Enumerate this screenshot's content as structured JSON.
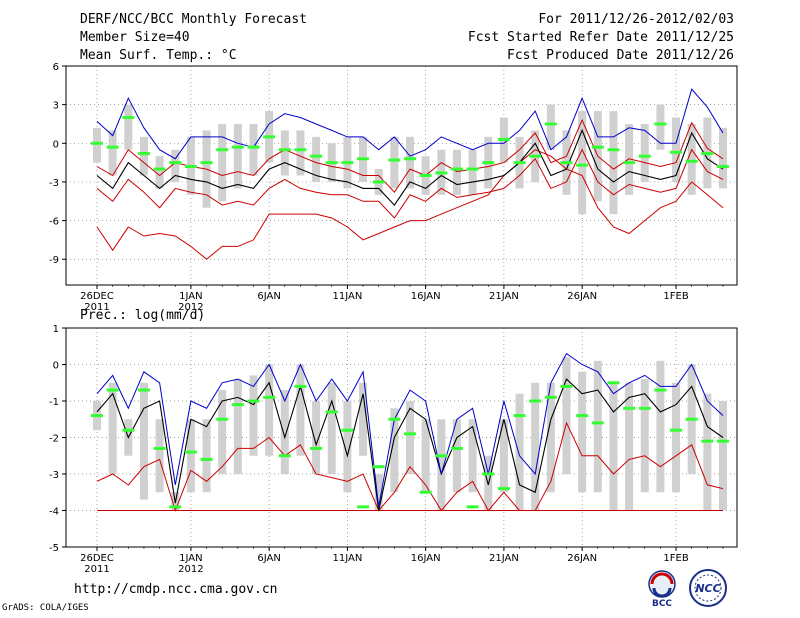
{
  "header": {
    "title": "DERF/NCC/BCC Monthly Forecast",
    "member": "Member Size=40",
    "variable": "Mean Surf. Temp.: °C",
    "period": "For 2011/12/26-2012/02/03",
    "start": "Fcst Started Refer Date 2011/12/25",
    "produced": "Fcst Produced Date 2011/12/26"
  },
  "footer": {
    "url": "http://cmdp.ncc.cma.gov.cn",
    "credit": "GrADS: COLA/IGES",
    "logo_bcc": "BCC",
    "logo_ncc": "NCC"
  },
  "colors": {
    "max": "#0000cc",
    "min": "#cc0000",
    "mean": "#000000",
    "ens": "#33ff33",
    "box": "#d0d0d0"
  },
  "chart_data": [
    {
      "type": "line",
      "title": "Mean Surf. Temp.: °C",
      "ylabel": "°C",
      "ylim": [
        -11,
        6
      ],
      "yticks": [
        6,
        3,
        0,
        -3,
        -6,
        -9
      ],
      "ytick_labels": [
        "6",
        "3",
        "0",
        "-3",
        "-6",
        "-9"
      ],
      "xticks": [
        {
          "i": 0,
          "l1": "26DEC",
          "l2": "2011"
        },
        {
          "i": 6,
          "l1": "1JAN",
          "l2": "2012"
        },
        {
          "i": 11,
          "l1": "6JAN",
          "l2": ""
        },
        {
          "i": 16,
          "l1": "11JAN",
          "l2": ""
        },
        {
          "i": 21,
          "l1": "16JAN",
          "l2": ""
        },
        {
          "i": 26,
          "l1": "21JAN",
          "l2": ""
        },
        {
          "i": 31,
          "l1": "26JAN",
          "l2": ""
        },
        {
          "i": 37,
          "l1": "1FEB",
          "l2": ""
        }
      ],
      "days": 40,
      "series": [
        {
          "name": "max",
          "values": [
            1.7,
            0.6,
            3.5,
            1.2,
            -0.5,
            -1.2,
            0.5,
            0.5,
            0.5,
            0.0,
            -0.3,
            1.5,
            2.3,
            2.0,
            1.5,
            1.0,
            0.5,
            0.5,
            -0.5,
            0.5,
            -1.0,
            -0.5,
            0.5,
            0.0,
            -0.5,
            0.0,
            0.0,
            1.0,
            2.5,
            -0.5,
            0.5,
            3.5,
            0.5,
            0.5,
            1.2,
            1.0,
            0.0,
            0.0,
            4.2,
            2.8,
            0.8
          ]
        },
        {
          "name": "mean",
          "values": [
            -2.5,
            -3.5,
            -1.5,
            -2.5,
            -3.5,
            -2.5,
            -2.8,
            -3.0,
            -3.5,
            -3.2,
            -3.5,
            -2.0,
            -1.5,
            -2.0,
            -2.5,
            -2.8,
            -3.0,
            -3.5,
            -3.5,
            -4.8,
            -3.0,
            -3.5,
            -2.5,
            -3.2,
            -3.0,
            -2.8,
            -2.5,
            -1.5,
            0.0,
            -2.5,
            -2.0,
            1.0,
            -2.0,
            -3.0,
            -2.2,
            -2.5,
            -2.8,
            -2.5,
            0.8,
            -1.2,
            -2.0
          ]
        },
        {
          "name": "upper",
          "values": [
            -1.8,
            -2.5,
            -0.5,
            -1.5,
            -2.5,
            -1.5,
            -1.8,
            -2.0,
            -2.5,
            -2.2,
            -2.5,
            -1.2,
            -0.5,
            -1.0,
            -1.5,
            -1.8,
            -2.0,
            -2.5,
            -2.5,
            -3.8,
            -2.0,
            -2.5,
            -1.5,
            -2.2,
            -2.0,
            -1.8,
            -1.5,
            -0.5,
            0.8,
            -1.5,
            -1.0,
            1.8,
            -1.0,
            -2.0,
            -1.2,
            -1.5,
            -1.8,
            -1.5,
            1.6,
            -0.4,
            -1.2
          ]
        },
        {
          "name": "lower",
          "values": [
            -3.5,
            -4.5,
            -2.8,
            -3.8,
            -5.0,
            -3.5,
            -3.8,
            -4.0,
            -4.8,
            -4.5,
            -4.8,
            -3.5,
            -2.8,
            -3.5,
            -3.8,
            -4.0,
            -4.0,
            -4.5,
            -4.5,
            -5.8,
            -4.0,
            -4.5,
            -3.5,
            -4.2,
            -4.0,
            -3.8,
            -3.5,
            -2.5,
            -1.2,
            -3.5,
            -3.0,
            -0.5,
            -3.0,
            -4.0,
            -3.2,
            -3.5,
            -3.8,
            -3.5,
            -0.5,
            -2.2,
            -2.8
          ]
        },
        {
          "name": "min",
          "values": [
            -6.5,
            -8.3,
            -6.5,
            -7.2,
            -7.0,
            -7.2,
            -8.0,
            -9.0,
            -8.0,
            -8.0,
            -7.5,
            -5.5,
            -5.5,
            -5.5,
            -5.5,
            -5.8,
            -6.5,
            -7.5,
            -7.0,
            -6.5,
            -6.0,
            -6.0,
            -5.5,
            -5.0,
            -4.5,
            -4.0,
            -2.5,
            -1.5,
            -0.5,
            -1.0,
            -2.0,
            -2.5,
            -5.0,
            -6.5,
            -7.0,
            -6.0,
            -5.0,
            -4.5,
            -3.0,
            -4.0,
            -5.0
          ]
        },
        {
          "name": "ensemble_mean",
          "values": [
            0.0,
            -0.3,
            2.0,
            -0.8,
            -2.0,
            -1.5,
            -1.8,
            -1.5,
            -0.5,
            -0.3,
            -0.3,
            0.5,
            -0.5,
            -0.5,
            -1.0,
            -1.5,
            -1.5,
            -1.2,
            -3.0,
            -1.3,
            -1.2,
            -2.5,
            -2.3,
            -2.0,
            -2.0,
            -1.5,
            0.3,
            -1.5,
            -1.0,
            1.5,
            -1.5,
            -1.7,
            -0.3,
            -0.5,
            -1.5,
            -1.0,
            1.5,
            -0.7,
            -1.4,
            -0.8,
            -1.8
          ]
        },
        {
          "name": "box_low",
          "values": [
            -1.5,
            -2.5,
            -0.5,
            -2.5,
            -3.5,
            -3.0,
            -4.0,
            -5.0,
            -4.5,
            -3.5,
            -2.5,
            -1.5,
            -2.5,
            -2.5,
            -3.0,
            -3.0,
            -3.5,
            -3.0,
            -4.0,
            -3.5,
            -3.5,
            -4.0,
            -4.0,
            -4.0,
            -4.0,
            -3.5,
            -1.5,
            -3.5,
            -3.0,
            -0.5,
            -4.0,
            -5.5,
            -4.5,
            -5.5,
            -4.0,
            -3.0,
            -0.5,
            -3.0,
            -4.0,
            -3.5,
            -3.5
          ]
        },
        {
          "name": "box_high",
          "values": [
            1.2,
            1.0,
            3.0,
            0.5,
            -1.0,
            -0.5,
            0.5,
            1.0,
            1.5,
            1.5,
            1.5,
            2.5,
            1.0,
            1.0,
            0.5,
            0.0,
            0.5,
            0.5,
            -2.0,
            0.5,
            0.5,
            -1.0,
            -0.5,
            -0.5,
            -0.5,
            0.5,
            2.0,
            0.5,
            1.0,
            3.0,
            1.0,
            2.5,
            2.5,
            2.5,
            1.5,
            1.5,
            3.0,
            2.0,
            1.5,
            2.0,
            1.2
          ]
        }
      ]
    },
    {
      "type": "line",
      "title": "Prec.: log(mm/d)",
      "ylabel": "log(mm/d)",
      "ylim": [
        -5,
        1
      ],
      "yticks": [
        1,
        0,
        -1,
        -2,
        -3,
        -4,
        -5
      ],
      "ytick_labels": [
        "1",
        "0",
        "-1",
        "-2",
        "-3",
        "-4",
        "-5"
      ],
      "xticks": [
        {
          "i": 0,
          "l1": "26DEC",
          "l2": "2011"
        },
        {
          "i": 6,
          "l1": "1JAN",
          "l2": "2012"
        },
        {
          "i": 11,
          "l1": "6JAN",
          "l2": ""
        },
        {
          "i": 16,
          "l1": "11JAN",
          "l2": ""
        },
        {
          "i": 21,
          "l1": "16JAN",
          "l2": ""
        },
        {
          "i": 26,
          "l1": "21JAN",
          "l2": ""
        },
        {
          "i": 31,
          "l1": "26JAN",
          "l2": ""
        },
        {
          "i": 37,
          "l1": "1FEB",
          "l2": ""
        }
      ],
      "days": 40,
      "series": [
        {
          "name": "max",
          "values": [
            -0.8,
            -0.3,
            -1.2,
            -0.2,
            -0.5,
            -3.3,
            -1.0,
            -1.2,
            -0.5,
            -0.4,
            -0.6,
            0.0,
            -1.0,
            0.0,
            -1.0,
            -0.4,
            -1.0,
            -0.2,
            -3.9,
            -1.5,
            -0.7,
            -1.0,
            -3.0,
            -1.5,
            -1.2,
            -3.0,
            -1.0,
            -2.5,
            -3.0,
            -0.5,
            0.3,
            0.0,
            -0.2,
            -0.8,
            -0.5,
            -0.3,
            -0.6,
            -0.6,
            0.0,
            -1.0,
            -1.4
          ]
        },
        {
          "name": "mean",
          "values": [
            -1.3,
            -0.8,
            -2.0,
            -1.2,
            -1.0,
            -3.8,
            -1.5,
            -1.7,
            -1.0,
            -0.9,
            -1.1,
            -0.5,
            -2.0,
            -0.6,
            -2.2,
            -1.0,
            -2.5,
            -0.8,
            -4.0,
            -2.0,
            -1.2,
            -1.5,
            -3.0,
            -2.0,
            -1.7,
            -3.3,
            -1.5,
            -3.3,
            -3.5,
            -1.5,
            -0.4,
            -0.8,
            -0.7,
            -1.3,
            -0.9,
            -0.8,
            -1.3,
            -1.1,
            -0.6,
            -1.7,
            -2.0
          ]
        },
        {
          "name": "min",
          "values": [
            -3.2,
            -3.0,
            -3.3,
            -2.8,
            -2.6,
            -4.0,
            -2.9,
            -3.2,
            -2.8,
            -2.3,
            -2.3,
            -2.0,
            -2.5,
            -2.2,
            -3.0,
            -3.1,
            -3.2,
            -3.0,
            -4.0,
            -3.5,
            -2.8,
            -3.3,
            -4.0,
            -3.5,
            -3.2,
            -4.0,
            -3.5,
            -4.0,
            -4.0,
            -3.2,
            -1.6,
            -2.5,
            -2.5,
            -3.0,
            -2.6,
            -2.5,
            -2.8,
            -2.5,
            -2.2,
            -3.3,
            -3.4
          ]
        },
        {
          "name": "floor",
          "values": [
            -4.0,
            -4.0,
            -4.0,
            -4.0,
            -4.0,
            -4.0,
            -4.0,
            -4.0,
            -4.0,
            -4.0,
            -4.0,
            -4.0,
            -4.0,
            -4.0,
            -4.0,
            -4.0,
            -4.0,
            -4.0,
            -4.0,
            -4.0,
            -4.0,
            -4.0,
            -4.0,
            -4.0,
            -4.0,
            -4.0,
            -4.0,
            -4.0,
            -4.0,
            -4.0,
            -4.0,
            -4.0,
            -4.0,
            -4.0,
            -4.0,
            -4.0,
            -4.0,
            -4.0,
            -4.0,
            -4.0,
            -4.0
          ]
        },
        {
          "name": "ensemble_mean",
          "values": [
            -1.4,
            -0.7,
            -1.8,
            -0.7,
            -2.3,
            -3.9,
            -2.4,
            -2.6,
            -1.5,
            -1.1,
            -1.0,
            -0.9,
            -2.5,
            -0.6,
            -2.3,
            -1.3,
            -1.8,
            -3.9,
            -2.8,
            -1.5,
            -1.9,
            -3.5,
            -2.5,
            -2.3,
            -3.9,
            -3.0,
            -3.4,
            -1.4,
            -1.0,
            -0.9,
            -0.6,
            -1.4,
            -1.6,
            -0.5,
            -1.2,
            -1.2,
            -0.7,
            -1.8,
            -1.5,
            -2.1,
            -2.1
          ]
        },
        {
          "name": "box_low",
          "values": [
            -1.8,
            -3.0,
            -2.5,
            -3.7,
            -3.5,
            -4.0,
            -3.5,
            -3.5,
            -3.0,
            -3.0,
            -2.5,
            -2.5,
            -3.0,
            -2.5,
            -3.0,
            -3.0,
            -3.5,
            -2.5,
            -4.0,
            -3.5,
            -3.0,
            -3.5,
            -4.0,
            -3.5,
            -3.5,
            -4.0,
            -3.5,
            -4.0,
            -4.0,
            -3.5,
            -3.0,
            -3.5,
            -3.5,
            -4.0,
            -4.0,
            -3.5,
            -3.5,
            -3.5,
            -3.0,
            -4.0,
            -4.0
          ]
        },
        {
          "name": "box_high",
          "values": [
            -1.0,
            -0.5,
            -1.5,
            -0.5,
            -1.5,
            -3.5,
            -1.5,
            -1.5,
            -0.7,
            -0.4,
            -0.3,
            0.0,
            -0.7,
            0.0,
            -1.0,
            -0.5,
            -1.0,
            -0.5,
            -3.0,
            -1.2,
            -1.0,
            -1.5,
            -1.5,
            -1.5,
            -1.5,
            -2.5,
            -1.5,
            -0.8,
            -0.5,
            -0.5,
            0.2,
            -0.2,
            0.1,
            -0.5,
            -0.5,
            -0.4,
            0.1,
            -0.5,
            0.0,
            -0.8,
            -1.0
          ]
        }
      ]
    }
  ]
}
